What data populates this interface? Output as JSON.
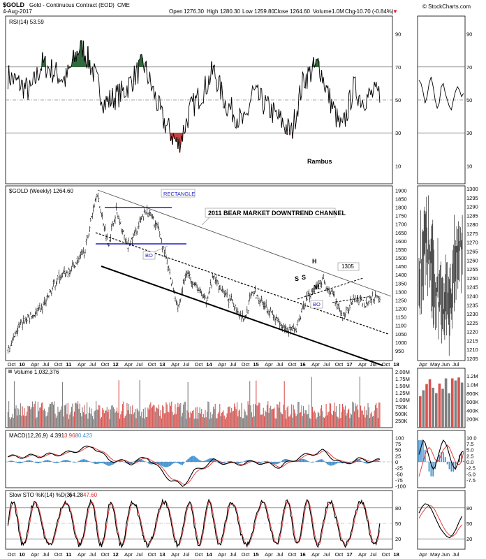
{
  "header": {
    "symbol": "$GOLD",
    "description": "Gold - Continuous Contract (EOD)",
    "exchange": "CME",
    "date": "4-Aug-2017",
    "open_label": "Open",
    "open": "1276.30",
    "high_label": "High",
    "high": "1280.30",
    "low_label": "Low",
    "low": "1259.80",
    "close_label": "Close",
    "close": "1264.60",
    "volume_label": "Volume",
    "volume": "1.0M",
    "change_label": "Chg",
    "change": "-10.70 (-0.84%)",
    "copyright": "© StockCharts.com"
  },
  "colors": {
    "up_volume": "#7f7f7f",
    "down_volume": "#d9534f",
    "macd_hist": "#3d8fd1",
    "signal": "#e03030",
    "rsi_fill": "#2e6b3a",
    "annot_blue": "#1f1fc4"
  },
  "chart_data": [
    {
      "type": "line",
      "panel": "rsi",
      "legend": "RSI(14) 53.59",
      "ylim": [
        0,
        100
      ],
      "ticks": [
        "90",
        "70",
        "50",
        "30",
        "10"
      ],
      "levels": [
        70,
        50,
        30
      ],
      "x": [
        "2009-10",
        "2010-04",
        "2010-07",
        "2011-01",
        "2011-05",
        "2011-08",
        "2011-11",
        "2012-04",
        "2012-09",
        "2013-02",
        "2013-06",
        "2013-09",
        "2014-01",
        "2014-03",
        "2014-06",
        "2014-11",
        "2015-01",
        "2015-05",
        "2015-08",
        "2015-11",
        "2016-02",
        "2016-06",
        "2016-08",
        "2016-11",
        "2016-12",
        "2017-03",
        "2017-05",
        "2017-08"
      ],
      "values": [
        65,
        55,
        72,
        62,
        84,
        68,
        48,
        55,
        72,
        38,
        22,
        44,
        58,
        68,
        48,
        35,
        55,
        45,
        38,
        30,
        62,
        72,
        56,
        36,
        32,
        58,
        50,
        53.59
      ],
      "annotations": [
        "Rambus"
      ]
    },
    {
      "type": "candlestick",
      "panel": "price",
      "legend": "$GOLD (Weekly) 1264.60",
      "ylim": [
        900,
        1910
      ],
      "ticks": [
        "1900",
        "1850",
        "1800",
        "1750",
        "1700",
        "1650",
        "1600",
        "1550",
        "1500",
        "1450",
        "1400",
        "1350",
        "1300",
        "1250",
        "1200",
        "1150",
        "1100",
        "1050",
        "1000",
        "950"
      ],
      "x_ticks": [
        "Oct",
        "10",
        "Apr",
        "Jul",
        "Oct",
        "11",
        "Apr",
        "Jul",
        "Oct",
        "12",
        "Apr",
        "Jul",
        "Oct",
        "13",
        "Apr",
        "Jul",
        "Oct",
        "14",
        "Apr",
        "Jul",
        "Oct",
        "15",
        "Apr",
        "Jul",
        "Oct",
        "16",
        "Apr",
        "Jul",
        "Oct",
        "17",
        "Apr",
        "Jul",
        "Oct",
        "18"
      ],
      "x": [
        "2009-10",
        "2010-02",
        "2010-07",
        "2010-11",
        "2011-02",
        "2011-06",
        "2011-09",
        "2011-12",
        "2012-02",
        "2012-05",
        "2012-10",
        "2013-01",
        "2013-04",
        "2013-06",
        "2013-08",
        "2014-01",
        "2014-03",
        "2014-06",
        "2014-11",
        "2015-01",
        "2015-05",
        "2015-08",
        "2015-12",
        "2016-03",
        "2016-07",
        "2016-10",
        "2016-12",
        "2017-03",
        "2017-06",
        "2017-08"
      ],
      "values": [
        950,
        1120,
        1200,
        1380,
        1420,
        1540,
        1890,
        1580,
        1780,
        1560,
        1790,
        1660,
        1380,
        1200,
        1420,
        1240,
        1390,
        1280,
        1140,
        1300,
        1200,
        1100,
        1060,
        1270,
        1370,
        1260,
        1140,
        1260,
        1230,
        1264.6
      ],
      "annotations": [
        {
          "text": "RECTANGLE"
        },
        {
          "text": "2011 BEAR MARKET DOWNTREND  CHANNEL"
        },
        {
          "text": "BO"
        },
        {
          "text": "BO"
        },
        {
          "text": "S"
        },
        {
          "text": "S"
        },
        {
          "text": "H"
        },
        {
          "text": "S"
        },
        {
          "text": "NL"
        },
        {
          "text": "1305"
        }
      ]
    },
    {
      "type": "bar",
      "panel": "volume",
      "legend": "Volume 1,032,376",
      "ticks": [
        "2.00M",
        "1.75M",
        "1.50M",
        "1.25M",
        "1.00M",
        "750K",
        "500K",
        "250K"
      ],
      "ylim": [
        0,
        2000000
      ]
    },
    {
      "type": "line",
      "panel": "macd",
      "legend_name": "MACD(12,26,9)",
      "legend_macd": "4.391",
      "legend_signal": "3.968",
      "legend_hist": "0.423",
      "ylim": [
        -110,
        110
      ],
      "ticks": [
        "100",
        "75",
        "50",
        "25",
        "0",
        "-25",
        "-50",
        "-75",
        "-100"
      ],
      "x": [
        "2009-10",
        "2010-06",
        "2011-01",
        "2011-08",
        "2011-12",
        "2012-06",
        "2012-10",
        "2013-04",
        "2013-07",
        "2013-10",
        "2014-03",
        "2014-08",
        "2015-02",
        "2015-08",
        "2016-01",
        "2016-07",
        "2016-12",
        "2017-04",
        "2017-08"
      ],
      "values": [
        20,
        25,
        35,
        65,
        10,
        -5,
        20,
        -75,
        -100,
        -40,
        5,
        -10,
        0,
        -20,
        20,
        45,
        -10,
        10,
        4.391
      ]
    },
    {
      "type": "line",
      "panel": "stochastic",
      "legend_name": "Slow STO %K(14) %D(3)",
      "legend_k": "64.28",
      "legend_d": "47.60",
      "ylim": [
        0,
        100
      ],
      "ticks": [
        "80",
        "50",
        "20"
      ],
      "levels": [
        80,
        20
      ]
    },
    {
      "type": "line",
      "panel": "inset",
      "ticks_price": [
        "1300",
        "1295",
        "1290",
        "1285",
        "1280",
        "1275",
        "1270",
        "1265",
        "1260",
        "1255",
        "1250",
        "1245",
        "1240",
        "1235",
        "1230",
        "1225",
        "1220",
        "1215",
        "1210",
        "1205"
      ],
      "x_ticks": [
        "Apr",
        "May",
        "Jun",
        "Jul"
      ],
      "ticks_volume": [
        "1.2M",
        "1.0M",
        "800K",
        "600K",
        "400K",
        "200K"
      ],
      "ticks_macd": [
        "10.0",
        "7.5",
        "5.0",
        "2.5",
        "0.0",
        "-2.5",
        "-5.0",
        "-7.5"
      ],
      "ticks_rsi": [
        "90",
        "70",
        "50",
        "30",
        "10"
      ],
      "ticks_sto": [
        "80",
        "50",
        "20"
      ]
    }
  ]
}
